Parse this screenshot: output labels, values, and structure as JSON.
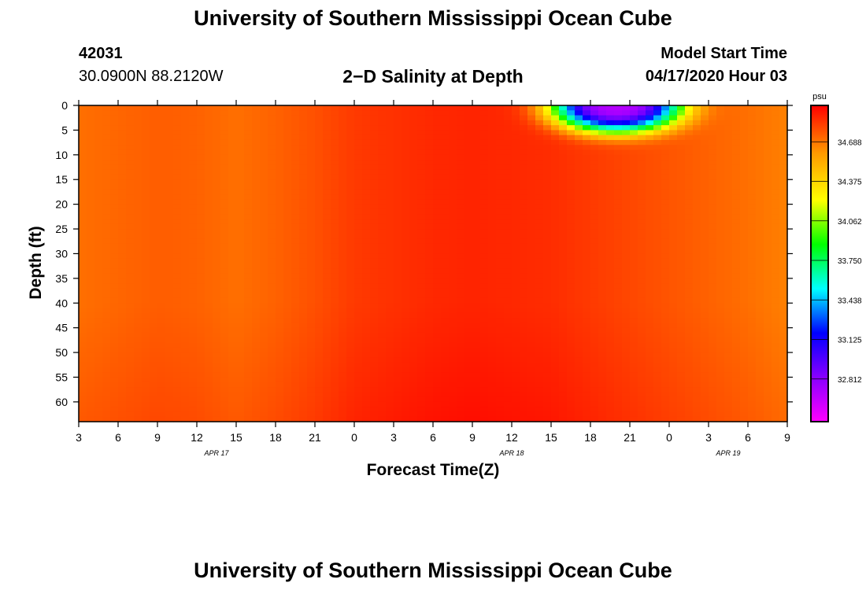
{
  "header": {
    "title": "University of Southern Mississippi Ocean Cube",
    "station_id": "42031",
    "station_coords": "30.0900N 88.2120W",
    "plot_title": "2−D Salinity at Depth",
    "model_start_label": "Model Start Time",
    "model_start_value": "04/17/2020 Hour 03"
  },
  "footer": {
    "title": "University of Southern Mississippi Ocean Cube"
  },
  "colors": {
    "magenta": "#ff00ff",
    "blue": "#0000ff",
    "cyan": "#00ffff",
    "green": "#00ff00",
    "yellow": "#ffff00",
    "orange": "#ff9900",
    "red": "#ff0000"
  },
  "chart_data": {
    "type": "heatmap",
    "xlabel": "Forecast Time(Z)",
    "ylabel": "Depth (ft)",
    "colorbar_label": "psu",
    "x_tick_labels": [
      "3",
      "6",
      "9",
      "12",
      "15",
      "18",
      "21",
      "0",
      "3",
      "6",
      "9",
      "12",
      "15",
      "18",
      "21",
      "0",
      "3",
      "6",
      "9"
    ],
    "date_labels": [
      {
        "text": "APR 17",
        "tick_index": 3.5
      },
      {
        "text": "APR 18",
        "tick_index": 11
      },
      {
        "text": "APR 19",
        "tick_index": 16.5
      }
    ],
    "y_tick_labels": [
      "0",
      "5",
      "10",
      "15",
      "20",
      "25",
      "30",
      "35",
      "40",
      "45",
      "50",
      "55",
      "60"
    ],
    "y_range": [
      0,
      64
    ],
    "colorbar_ticks": [
      "34.688",
      "34.375",
      "34.062",
      "33.750",
      "33.438",
      "33.125",
      "32.812"
    ],
    "color_range": [
      32.65,
      34.95
    ],
    "x_hours_range": [
      0,
      54
    ],
    "depth_profile_hours": [
      0,
      3,
      6,
      9,
      12,
      15,
      18,
      21,
      24,
      27,
      30,
      33,
      36,
      39,
      42,
      45,
      48,
      51,
      54
    ],
    "deep_salinity": [
      34.7,
      34.72,
      34.74,
      34.73,
      34.7,
      34.73,
      34.77,
      34.82,
      34.84,
      34.86,
      34.87,
      34.86,
      34.85,
      34.82,
      34.79,
      34.76,
      34.73,
      34.7,
      34.66
    ],
    "surface_event": {
      "center_hour": 41.0,
      "min_salinity": 32.85,
      "half_width_hours": 5.0,
      "depth_ft": 5.5
    },
    "grid_lines": false
  }
}
